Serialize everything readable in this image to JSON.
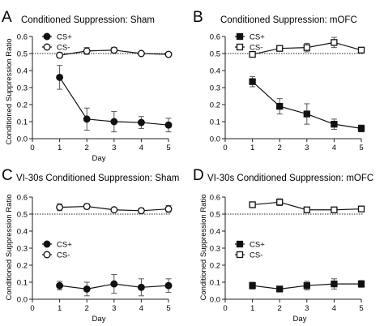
{
  "panels": [
    {
      "letter": "A",
      "title": "Conditioned Suppression: Sham"
    },
    {
      "letter": "B",
      "title": "Conditioned Suppression: mOFC"
    },
    {
      "letter": "C",
      "title": "VI-30s Conditioned Suppression: Sham"
    },
    {
      "letter": "D",
      "title": "VI-30s Conditioned Suppression: mOFC"
    }
  ],
  "chart_data": [
    {
      "type": "line",
      "title": "Conditioned Suppression: Sham",
      "xlabel": "Day",
      "ylabel": "Conditioned Suppression Ratio",
      "xlim": [
        0,
        5
      ],
      "ylim": [
        0,
        0.6
      ],
      "x": [
        1,
        2,
        3,
        4,
        5
      ],
      "xticks": [
        "0",
        "1",
        "2",
        "3",
        "4",
        "5"
      ],
      "yticks": [
        "0.0",
        "0.1",
        "0.2",
        "0.3",
        "0.4",
        "0.5",
        "0.6"
      ],
      "reference_line": 0.5,
      "marker": "circle",
      "legend_position": "top-left",
      "series": [
        {
          "name": "CS+",
          "fill": "filled",
          "values": [
            0.36,
            0.115,
            0.1,
            0.095,
            0.08
          ],
          "errors": [
            0.07,
            0.065,
            0.06,
            0.035,
            0.04
          ]
        },
        {
          "name": "CS-",
          "fill": "open",
          "values": [
            0.49,
            0.515,
            0.52,
            0.5,
            0.495
          ],
          "errors": [
            0.015,
            0.02,
            0.015,
            0.01,
            0.01
          ]
        }
      ]
    },
    {
      "type": "line",
      "title": "Conditioned Suppression: mOFC",
      "xlabel": "",
      "ylabel": "",
      "xlim": [
        0,
        5
      ],
      "ylim": [
        0,
        0.6
      ],
      "x": [
        1,
        2,
        3,
        4,
        5
      ],
      "xticks": [
        "0",
        "1",
        "2",
        "3",
        "4",
        "5"
      ],
      "yticks": [
        "0.0",
        "0.1",
        "0.2",
        "0.3",
        "0.4",
        "0.5",
        "0.6"
      ],
      "reference_line": 0.5,
      "marker": "square",
      "legend_position": "top-left",
      "series": [
        {
          "name": "CS+",
          "fill": "filled",
          "values": [
            0.335,
            0.19,
            0.145,
            0.085,
            0.06
          ],
          "errors": [
            0.03,
            0.045,
            0.06,
            0.03,
            0.02
          ]
        },
        {
          "name": "CS-",
          "fill": "open",
          "values": [
            0.495,
            0.53,
            0.535,
            0.565,
            0.52
          ],
          "errors": [
            0.01,
            0.015,
            0.025,
            0.03,
            0.015
          ]
        }
      ]
    },
    {
      "type": "line",
      "title": "VI-30s Conditioned Suppression: Sham",
      "xlabel": "Day",
      "ylabel": "Conditioned Suppression Ratio",
      "xlim": [
        0,
        5
      ],
      "ylim": [
        0,
        0.6
      ],
      "x": [
        1,
        2,
        3,
        4,
        5
      ],
      "xticks": [
        "0",
        "1",
        "2",
        "3",
        "4",
        "5"
      ],
      "yticks": [
        "0.0",
        "0.1",
        "0.2",
        "0.3",
        "0.4",
        "0.5",
        "0.6"
      ],
      "reference_line": 0.5,
      "marker": "circle",
      "legend_position": "middle-left",
      "series": [
        {
          "name": "CS+",
          "fill": "filled",
          "values": [
            0.08,
            0.06,
            0.09,
            0.07,
            0.08
          ],
          "errors": [
            0.025,
            0.04,
            0.055,
            0.05,
            0.04
          ]
        },
        {
          "name": "CS-",
          "fill": "open",
          "values": [
            0.54,
            0.545,
            0.525,
            0.52,
            0.53
          ],
          "errors": [
            0.02,
            0.015,
            0.01,
            0.015,
            0.02
          ]
        }
      ]
    },
    {
      "type": "line",
      "title": "VI-30s Conditioned Suppression: mOFC",
      "xlabel": "Day",
      "ylabel": "Conditioned Suppression Ratio",
      "xlim": [
        0,
        5
      ],
      "ylim": [
        0,
        0.6
      ],
      "x": [
        1,
        2,
        3,
        4,
        5
      ],
      "xticks": [
        "0",
        "1",
        "2",
        "3",
        "4",
        "5"
      ],
      "yticks": [
        "0.0",
        "0.1",
        "0.2",
        "0.3",
        "0.4",
        "0.5",
        "0.6"
      ],
      "reference_line": 0.5,
      "marker": "square",
      "legend_position": "middle-left",
      "series": [
        {
          "name": "CS+",
          "fill": "filled",
          "values": [
            0.08,
            0.06,
            0.08,
            0.09,
            0.09
          ],
          "errors": [
            0.02,
            0.01,
            0.025,
            0.03,
            0.02
          ]
        },
        {
          "name": "CS-",
          "fill": "open",
          "values": [
            0.555,
            0.57,
            0.525,
            0.525,
            0.53
          ],
          "errors": [
            0.015,
            0.02,
            0.01,
            0.01,
            0.01
          ]
        }
      ]
    }
  ]
}
